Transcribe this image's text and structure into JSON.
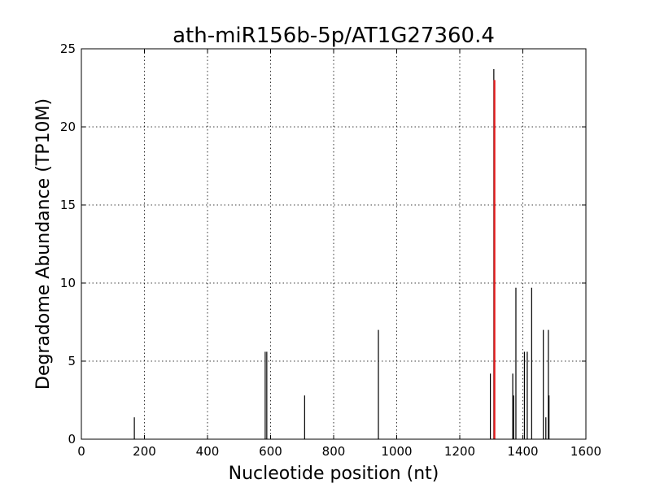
{
  "chart_data": {
    "type": "bar",
    "title": "ath-miR156b-5p/AT1G27360.4",
    "xlabel": "Nucleotide position (nt)",
    "ylabel": "Degradome Abundance (TP10M)",
    "xlim": [
      0,
      1600
    ],
    "ylim": [
      0,
      25
    ],
    "xticks": [
      0,
      200,
      400,
      600,
      800,
      1000,
      1200,
      1400,
      1600
    ],
    "yticks": [
      0,
      5,
      10,
      15,
      20,
      25
    ],
    "grid": true,
    "series": [
      {
        "color": "#000000",
        "points": [
          {
            "x": 168,
            "y": 1.4
          },
          {
            "x": 583,
            "y": 5.6
          },
          {
            "x": 588,
            "y": 5.6
          },
          {
            "x": 708,
            "y": 2.8
          },
          {
            "x": 942,
            "y": 7.0
          },
          {
            "x": 1297,
            "y": 4.2
          },
          {
            "x": 1308,
            "y": 23.7
          },
          {
            "x": 1368,
            "y": 4.2
          },
          {
            "x": 1371,
            "y": 2.8
          },
          {
            "x": 1378,
            "y": 9.7
          },
          {
            "x": 1405,
            "y": 5.6
          },
          {
            "x": 1414,
            "y": 5.6
          },
          {
            "x": 1428,
            "y": 9.7
          },
          {
            "x": 1465,
            "y": 7.0
          },
          {
            "x": 1473,
            "y": 1.4
          },
          {
            "x": 1481,
            "y": 7.0
          },
          {
            "x": 1483,
            "y": 2.8
          }
        ]
      },
      {
        "color": "#e41a1c",
        "points": [
          {
            "x": 1310,
            "y": 23.0
          }
        ]
      }
    ]
  }
}
